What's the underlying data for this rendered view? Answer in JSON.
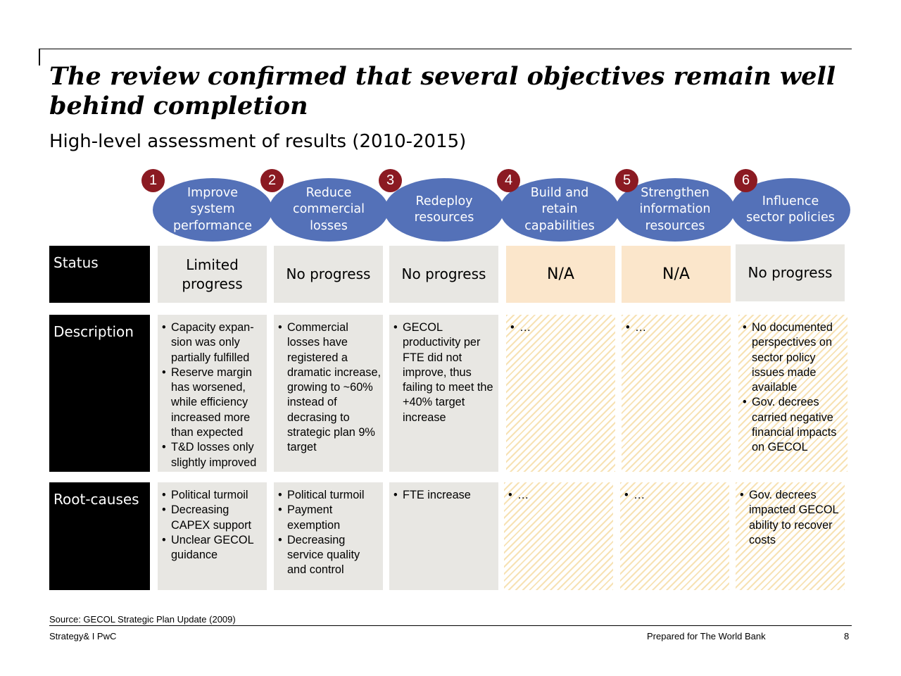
{
  "title": "The review confirmed that several objectives remain well behind completion",
  "subtitle": "High-level assessment of results (2010-2015)",
  "objectives": [
    {
      "num": "1",
      "label": "Improve system performance"
    },
    {
      "num": "2",
      "label": "Reduce commercial losses"
    },
    {
      "num": "3",
      "label": "Redeploy resources"
    },
    {
      "num": "4",
      "label": "Build and retain capabilities"
    },
    {
      "num": "5",
      "label": "Strengthen information resources"
    },
    {
      "num": "6",
      "label": "Influence sector policies"
    }
  ],
  "row_labels": {
    "status": "Status",
    "description": "Description",
    "root_causes": "Root-causes"
  },
  "status": [
    "Limited progress",
    "No progress",
    "No progress",
    "N/A",
    "N/A",
    "No progress"
  ],
  "description": [
    [
      "Capacity expan-sion was only partially fulfilled",
      "Reserve margin has worsened, while efficiency increased more than expected",
      "T&D losses only slightly improved"
    ],
    [
      "Commercial losses have registered a dramatic increase, growing to ~60% instead of decrasing to strategic plan 9% target"
    ],
    [
      "GECOL productivity per FTE did not improve, thus failing to meet the +40% target increase"
    ],
    [
      "…"
    ],
    [
      "…"
    ],
    [
      "No documented perspectives on sector policy issues made available",
      "Gov. decrees carried negative financial impacts on GECOL"
    ]
  ],
  "root_causes": [
    [
      "Political turmoil",
      "Decreasing CAPEX support",
      "Unclear GECOL guidance"
    ],
    [
      "Political turmoil",
      "Payment exemption",
      "Decreasing service quality and control"
    ],
    [
      "FTE increase"
    ],
    [
      "…"
    ],
    [
      "…"
    ],
    [
      "Gov. decrees impacted GECOL ability to recover costs"
    ]
  ],
  "colors": {
    "ellipse": "#5471b8",
    "badge": "#8b1a22",
    "grey_cell": "#e8e7e3",
    "na_cell": "#fbe6cb",
    "hatch": "#f7e2b4",
    "row_head": "#000000"
  },
  "footer": {
    "source": "Source: GECOL Strategic Plan Update (2009)",
    "left": "Strategy& I PwC",
    "right": "Prepared for The World Bank",
    "page": "8"
  }
}
